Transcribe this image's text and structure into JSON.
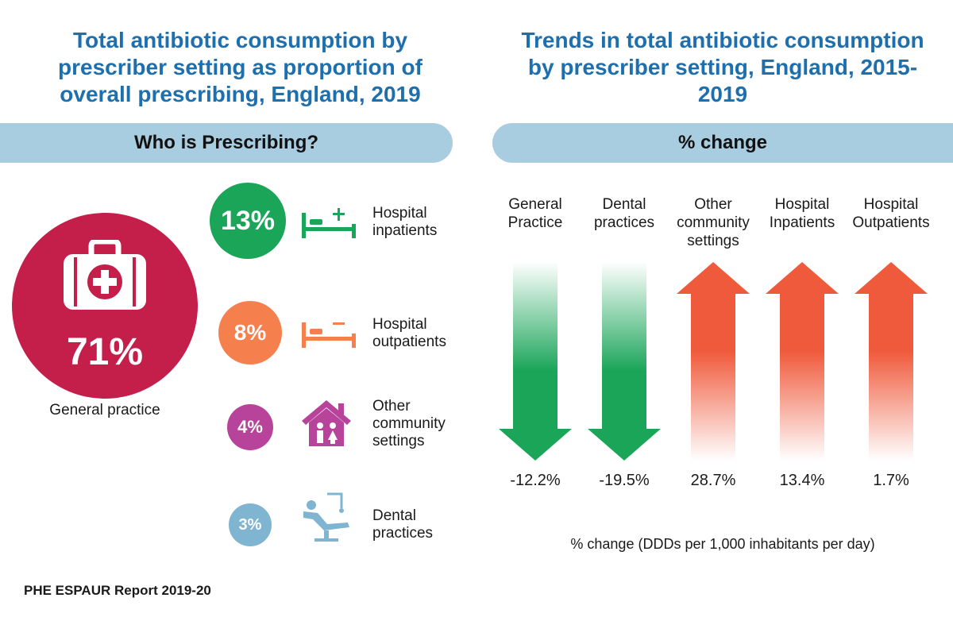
{
  "left_title": "Total antibiotic consumption by prescriber setting as proportion of overall prescribing, England, 2019",
  "right_title": "Trends in total antibiotic consumption by prescriber setting, England, 2015-2019",
  "left_banner": "Who is Prescribing?",
  "right_banner": "% change",
  "general_practice": {
    "pct": "71%",
    "label": "General practice",
    "color": "#c41f4b",
    "icon": "medical-kit-icon"
  },
  "settings": [
    {
      "pct": "13%",
      "label_lines": [
        "Hospital",
        "inpatients"
      ],
      "color": "#1aa558",
      "icon": "hospital-bed-plus-icon"
    },
    {
      "pct": "8%",
      "label_lines": [
        "Hospital",
        "outpatients"
      ],
      "color": "#f5804d",
      "icon": "hospital-bed-minus-icon"
    },
    {
      "pct": "4%",
      "label_lines": [
        "Other",
        "community",
        "settings"
      ],
      "color": "#b8439a",
      "icon": "community-house-icon"
    },
    {
      "pct": "3%",
      "label_lines": [
        "Dental",
        "practices"
      ],
      "color": "#7fb5d1",
      "icon": "dental-chair-icon"
    }
  ],
  "chart_data": [
    {
      "type": "pie",
      "title": "Total antibiotic consumption by prescriber setting as proportion of overall prescribing, England, 2019",
      "categories": [
        "General practice",
        "Hospital inpatients",
        "Hospital outpatients",
        "Other community settings",
        "Dental practices"
      ],
      "values": [
        71,
        13,
        8,
        4,
        3
      ],
      "unit": "%"
    },
    {
      "type": "bar",
      "title": "Trends in total antibiotic consumption by prescriber setting, England, 2015-2019",
      "categories": [
        "General Practice",
        "Dental practices",
        "Other community settings",
        "Hospital Inpatients",
        "Hospital Outpatients"
      ],
      "category_lines": [
        [
          "General",
          "Practice"
        ],
        [
          "Dental",
          "practices"
        ],
        [
          "Other",
          "community",
          "settings"
        ],
        [
          "Hospital",
          "Inpatients"
        ],
        [
          "Hospital",
          "Outpatients"
        ]
      ],
      "values": [
        -12.2,
        -19.5,
        28.7,
        13.4,
        1.7
      ],
      "value_labels": [
        "-12.2%",
        "-19.5%",
        "28.7%",
        "13.4%",
        "1.7%"
      ],
      "xlabel": "% change (DDDs per 1,000 inhabitants per day)",
      "colors": {
        "decrease": "#1aa558",
        "increase": "#f05a3c"
      }
    }
  ],
  "source": "PHE ESPAUR Report 2019-20"
}
